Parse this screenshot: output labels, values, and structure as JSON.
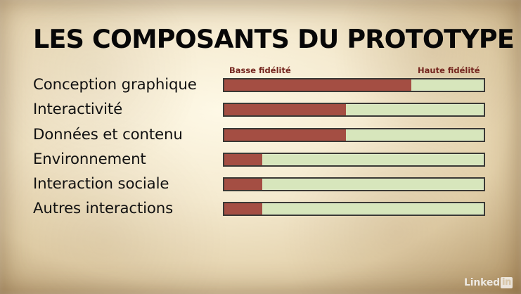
{
  "slide": {
    "title": "LES COMPOSANTS DU PROTOTYPE",
    "legend": {
      "low": "Basse fidélité",
      "high": "Haute fidélité"
    },
    "rows": [
      {
        "label": "Conception graphique",
        "fidelity_level": 0.72
      },
      {
        "label": "Interactivité",
        "fidelity_level": 0.47
      },
      {
        "label": "Données et contenu",
        "fidelity_level": 0.47
      },
      {
        "label": "Environnement",
        "fidelity_level": 0.145
      },
      {
        "label": "Interaction sociale",
        "fidelity_level": 0.145
      },
      {
        "label": "Autres interactions",
        "fidelity_level": 0.145
      }
    ],
    "watermark": {
      "word": "Linked",
      "box": "in"
    }
  },
  "colors": {
    "title": "#070707",
    "legend": "#74251e",
    "fill": "#a44e43",
    "track": "#d7e6bc",
    "border": "#3a3935",
    "paper": "#e8dbc0"
  }
}
